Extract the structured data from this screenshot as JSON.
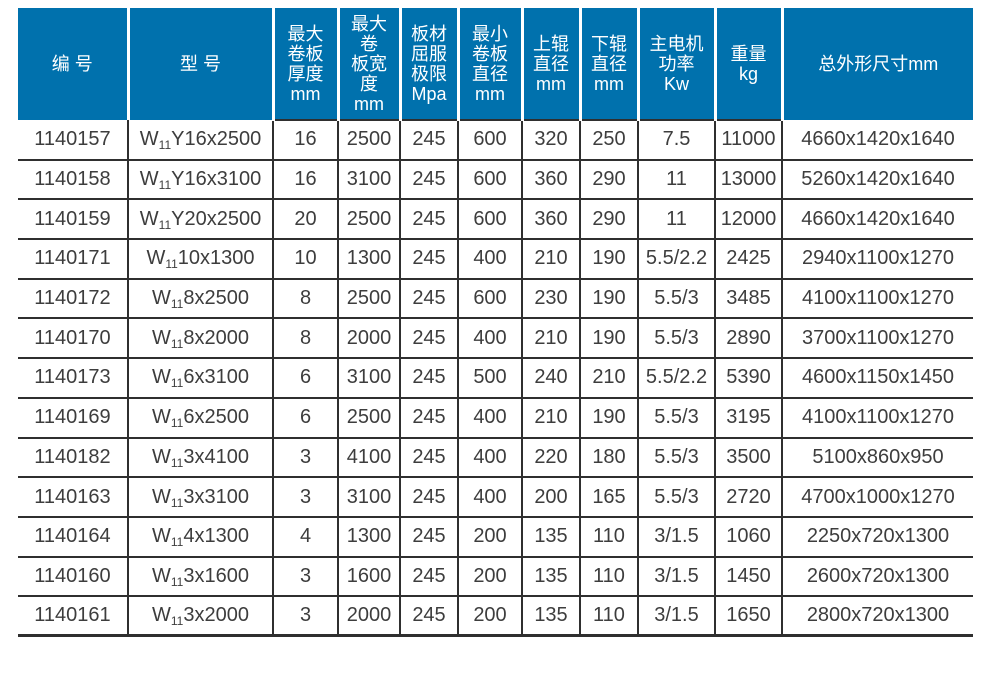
{
  "colors": {
    "header_bg": "#0071ad",
    "header_text": "#ffffff",
    "body_text": "#3d3d3d",
    "border": "#2f2f2f",
    "page_bg": "#ffffff"
  },
  "table": {
    "columns": [
      {
        "key": "id",
        "lines": [
          "编 号"
        ]
      },
      {
        "key": "model",
        "lines": [
          "型 号"
        ]
      },
      {
        "key": "max_thickness",
        "lines": [
          "最大",
          "卷板",
          "厚度",
          "mm"
        ]
      },
      {
        "key": "max_width",
        "lines": [
          "最大",
          "卷",
          "板宽",
          "度",
          "mm"
        ]
      },
      {
        "key": "yield_limit",
        "lines": [
          "板材",
          "屈服",
          "极限",
          "Mpa"
        ]
      },
      {
        "key": "min_diameter",
        "lines": [
          "最小",
          "卷板",
          "直径",
          "mm"
        ]
      },
      {
        "key": "upper_roller",
        "lines": [
          "上辊",
          "直径",
          "mm"
        ]
      },
      {
        "key": "lower_roller",
        "lines": [
          "下辊",
          "直径",
          "mm"
        ]
      },
      {
        "key": "motor_power",
        "lines": [
          "主电机",
          "功率",
          "Kw"
        ]
      },
      {
        "key": "weight",
        "lines": [
          "重量",
          "kg"
        ]
      },
      {
        "key": "dimensions",
        "lines": [
          "总外形尺寸mm"
        ]
      }
    ],
    "rows": [
      {
        "id": "1140157",
        "model": {
          "prefix": "W",
          "sub": "11",
          "rest": "Y16x2500"
        },
        "max_thickness": "16",
        "max_width": "2500",
        "yield_limit": "245",
        "min_diameter": "600",
        "upper_roller": "320",
        "lower_roller": "250",
        "motor_power": "7.5",
        "weight": "11000",
        "dimensions": "4660x1420x1640"
      },
      {
        "id": "1140158",
        "model": {
          "prefix": "W",
          "sub": "11",
          "rest": "Y16x3100"
        },
        "max_thickness": "16",
        "max_width": "3100",
        "yield_limit": "245",
        "min_diameter": "600",
        "upper_roller": "360",
        "lower_roller": "290",
        "motor_power": "11",
        "weight": "13000",
        "dimensions": "5260x1420x1640"
      },
      {
        "id": "1140159",
        "model": {
          "prefix": "W",
          "sub": "11",
          "rest": "Y20x2500"
        },
        "max_thickness": "20",
        "max_width": "2500",
        "yield_limit": "245",
        "min_diameter": "600",
        "upper_roller": "360",
        "lower_roller": "290",
        "motor_power": "11",
        "weight": "12000",
        "dimensions": "4660x1420x1640"
      },
      {
        "id": "1140171",
        "model": {
          "prefix": "W",
          "sub": "11",
          "rest": "10x1300"
        },
        "max_thickness": "10",
        "max_width": "1300",
        "yield_limit": "245",
        "min_diameter": "400",
        "upper_roller": "210",
        "lower_roller": "190",
        "motor_power": "5.5/2.2",
        "weight": "2425",
        "dimensions": "2940x1100x1270"
      },
      {
        "id": "1140172",
        "model": {
          "prefix": "W",
          "sub": "11",
          "rest": "8x2500"
        },
        "max_thickness": "8",
        "max_width": "2500",
        "yield_limit": "245",
        "min_diameter": "600",
        "upper_roller": "230",
        "lower_roller": "190",
        "motor_power": "5.5/3",
        "weight": "3485",
        "dimensions": "4100x1100x1270"
      },
      {
        "id": "1140170",
        "model": {
          "prefix": "W",
          "sub": "11",
          "rest": "8x2000"
        },
        "max_thickness": "8",
        "max_width": "2000",
        "yield_limit": "245",
        "min_diameter": "400",
        "upper_roller": "210",
        "lower_roller": "190",
        "motor_power": "5.5/3",
        "weight": "2890",
        "dimensions": "3700x1100x1270"
      },
      {
        "id": "1140173",
        "model": {
          "prefix": "W",
          "sub": "11",
          "rest": "6x3100"
        },
        "max_thickness": "6",
        "max_width": "3100",
        "yield_limit": "245",
        "min_diameter": "500",
        "upper_roller": "240",
        "lower_roller": "210",
        "motor_power": "5.5/2.2",
        "weight": "5390",
        "dimensions": "4600x1150x1450"
      },
      {
        "id": "1140169",
        "model": {
          "prefix": "W",
          "sub": "11",
          "rest": "6x2500"
        },
        "max_thickness": "6",
        "max_width": "2500",
        "yield_limit": "245",
        "min_diameter": "400",
        "upper_roller": "210",
        "lower_roller": "190",
        "motor_power": "5.5/3",
        "weight": "3195",
        "dimensions": "4100x1100x1270"
      },
      {
        "id": "1140182",
        "model": {
          "prefix": "W",
          "sub": "11",
          "rest": "3x4100"
        },
        "max_thickness": "3",
        "max_width": "4100",
        "yield_limit": "245",
        "min_diameter": "400",
        "upper_roller": "220",
        "lower_roller": "180",
        "motor_power": "5.5/3",
        "weight": "3500",
        "dimensions": "5100x860x950"
      },
      {
        "id": "1140163",
        "model": {
          "prefix": "W",
          "sub": "11",
          "rest": "3x3100"
        },
        "max_thickness": "3",
        "max_width": "3100",
        "yield_limit": "245",
        "min_diameter": "400",
        "upper_roller": "200",
        "lower_roller": "165",
        "motor_power": "5.5/3",
        "weight": "2720",
        "dimensions": "4700x1000x1270"
      },
      {
        "id": "1140164",
        "model": {
          "prefix": "W",
          "sub": "11",
          "rest": "4x1300"
        },
        "max_thickness": "4",
        "max_width": "1300",
        "yield_limit": "245",
        "min_diameter": "200",
        "upper_roller": "135",
        "lower_roller": "110",
        "motor_power": "3/1.5",
        "weight": "1060",
        "dimensions": "2250x720x1300"
      },
      {
        "id": "1140160",
        "model": {
          "prefix": "W",
          "sub": "11",
          "rest": "3x1600"
        },
        "max_thickness": "3",
        "max_width": "1600",
        "yield_limit": "245",
        "min_diameter": "200",
        "upper_roller": "135",
        "lower_roller": "110",
        "motor_power": "3/1.5",
        "weight": "1450",
        "dimensions": "2600x720x1300"
      },
      {
        "id": "1140161",
        "model": {
          "prefix": "W",
          "sub": "11",
          "rest": "3x2000"
        },
        "max_thickness": "3",
        "max_width": "2000",
        "yield_limit": "245",
        "min_diameter": "200",
        "upper_roller": "135",
        "lower_roller": "110",
        "motor_power": "3/1.5",
        "weight": "1650",
        "dimensions": "2800x720x1300"
      }
    ]
  }
}
